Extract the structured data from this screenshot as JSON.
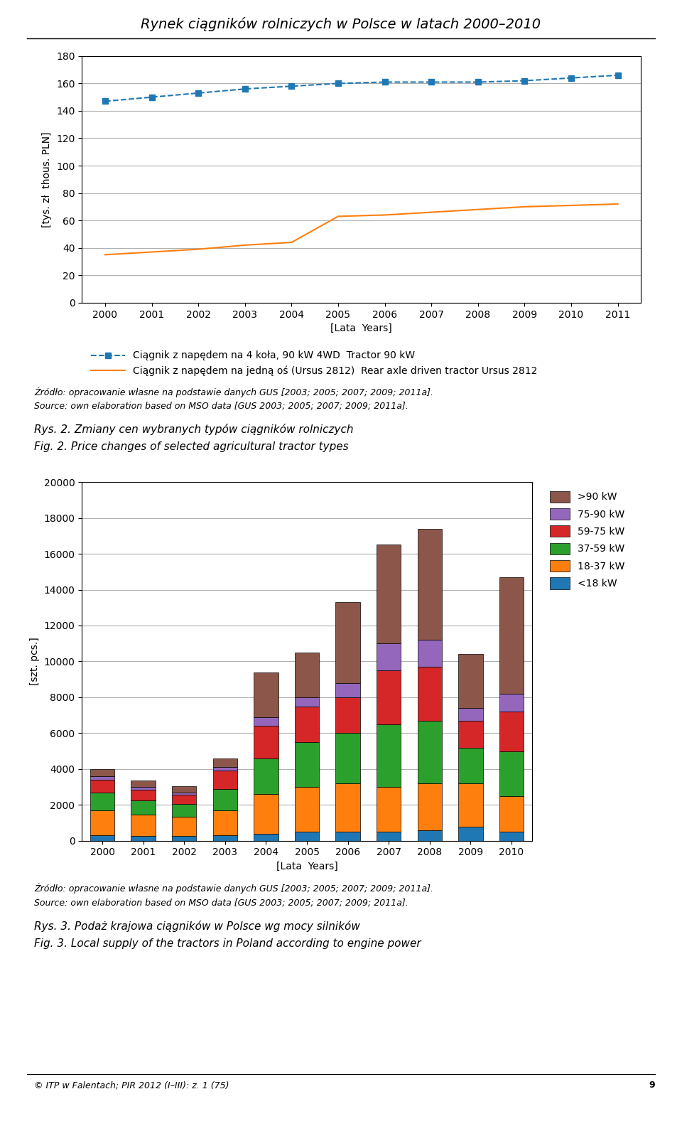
{
  "title": "Rynek ciągników rolniczych w Polsce w latach 2000–2010",
  "annotations": [
    "© ITP w Falentach; PIR 2012 (I–III): z. 1 (75)",
    "9"
  ],
  "chart_data": [
    {
      "type": "line",
      "xlabel": "[Lata  Years]",
      "ylabel": "[tys. zł  thous. PLN]",
      "x": [
        2000,
        2001,
        2002,
        2003,
        2004,
        2005,
        2006,
        2007,
        2008,
        2009,
        2010,
        2011
      ],
      "series": [
        {
          "name": "Ciągnik z napędem na 4 koła, 90 kW 4WD  Tractor 90 kW",
          "values": [
            147,
            150,
            153,
            156,
            158,
            160,
            161,
            161,
            161,
            162,
            164,
            166
          ],
          "line_style": "dashed",
          "marker": "square"
        },
        {
          "name": "Ciągnik z napędem na jedną oś (Ursus 2812)  Rear axle driven tractor Ursus 2812",
          "values": [
            35,
            37,
            39,
            42,
            44,
            63,
            64,
            66,
            68,
            70,
            71,
            72
          ],
          "line_style": "solid"
        }
      ],
      "xlim": [
        1999.5,
        2011.5
      ],
      "xticks": [
        2000,
        2001,
        2002,
        2003,
        2004,
        2005,
        2006,
        2007,
        2008,
        2009,
        2010,
        2011
      ],
      "ylim": [
        0,
        180
      ],
      "yticks": [
        0,
        20,
        40,
        60,
        80,
        100,
        120,
        140,
        160,
        180
      ],
      "grid": "y",
      "legend": "upper left",
      "annotations": [
        "Źródło: opracowanie własne na podstawie danych GUS [2003; 2005; 2007; 2009; 2011a].",
        "Source: own elaboration based on MSO data [GUS 2003; 2005; 2007; 2009; 2011a].",
        "Rys. 2. Zmiany cen wybranych typów ciągników rolniczych",
        "Fig. 2. Price changes of selected agricultural tractor types"
      ]
    },
    {
      "type": "bar",
      "stacked": true,
      "xlabel": "[Lata  Years]",
      "ylabel": "[szt. pcs.]",
      "categories": [
        "2000",
        "2001",
        "2002",
        "2003",
        "2004",
        "2005",
        "2006",
        "2007",
        "2008",
        "2009",
        "2010"
      ],
      "series": [
        {
          "name": "<18 kW",
          "values": [
            300,
            250,
            250,
            300,
            400,
            500,
            500,
            500,
            600,
            800,
            500
          ]
        },
        {
          "name": "18-37 kW",
          "values": [
            1400,
            1200,
            1100,
            1400,
            2200,
            2500,
            2700,
            2500,
            2600,
            2400,
            2000
          ]
        },
        {
          "name": "37-59 kW",
          "values": [
            1000,
            800,
            700,
            1200,
            2000,
            2500,
            2800,
            3500,
            3500,
            2000,
            2500
          ]
        },
        {
          "name": "59-75 kW",
          "values": [
            700,
            600,
            500,
            1000,
            1800,
            2000,
            2000,
            3000,
            3000,
            1500,
            2200
          ]
        },
        {
          "name": "75-90 kW",
          "values": [
            200,
            150,
            150,
            200,
            500,
            500,
            800,
            1500,
            1500,
            700,
            1000
          ]
        },
        {
          "name": ">90 kW",
          "values": [
            400,
            350,
            350,
            500,
            2500,
            2500,
            4500,
            5500,
            6200,
            3000,
            6500
          ]
        }
      ],
      "ylim": [
        0,
        20000
      ],
      "yticks": [
        0,
        2000,
        4000,
        6000,
        8000,
        10000,
        12000,
        14000,
        16000,
        18000,
        20000
      ],
      "grid": "y",
      "legend": "upper left",
      "annotations": [
        "Źródło: opracowanie własne na podstawie danych GUS [2003; 2005; 2007; 2009; 2011a].",
        "Source: own elaboration based on MSO data [GUS 2003; 2005; 2007; 2009; 2011a].",
        "Rys. 3. Podaż krajowa ciągników w Polsce wg mocy silników",
        "Fig. 3. Local supply of the tractors in Poland according to engine power"
      ]
    }
  ]
}
